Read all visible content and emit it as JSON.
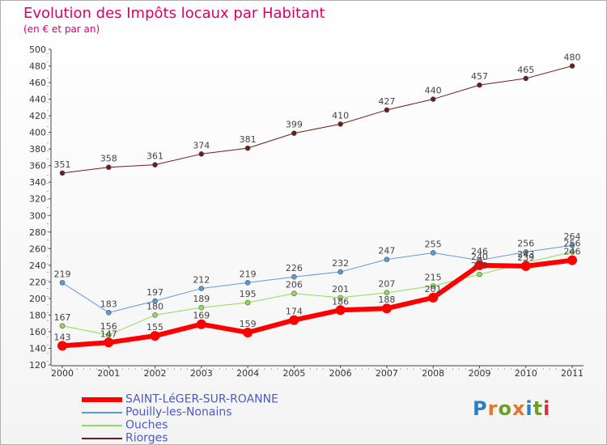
{
  "header": {
    "title": "Evolution des Impôts locaux par Habitant",
    "subtitle": "(en € et par an)"
  },
  "chart_data": {
    "type": "line",
    "title": "Evolution des Impôts locaux par Habitant",
    "ylabel": "(en € et par an)",
    "xlabel": "",
    "ylim": [
      120,
      500
    ],
    "yticks": [
      120,
      140,
      160,
      180,
      200,
      220,
      240,
      260,
      280,
      300,
      320,
      340,
      360,
      380,
      400,
      420,
      440,
      460,
      480,
      500
    ],
    "grid": false,
    "x": [
      "2000",
      "2001",
      "2002",
      "2003",
      "2004",
      "2005",
      "2006",
      "2007",
      "2008",
      "2009",
      "2010",
      "2011"
    ],
    "series": [
      {
        "name": "Riorges",
        "color": "#6b1d1d",
        "width": 1,
        "values": [
          351,
          358,
          361,
          374,
          381,
          399,
          410,
          427,
          440,
          457,
          465,
          480
        ]
      },
      {
        "name": "Pouilly-les-Nonains",
        "color": "#5b9bd5",
        "width": 1,
        "values": [
          219,
          183,
          197,
          212,
          219,
          226,
          232,
          247,
          255,
          246,
          256,
          264
        ]
      },
      {
        "name": "Ouches",
        "color": "#8fdc5a",
        "width": 1,
        "values": [
          167,
          156,
          180,
          189,
          195,
          206,
          201,
          207,
          215,
          229,
          243,
          256
        ]
      },
      {
        "name": "SAINT-LéGER-SUR-ROANNE",
        "color": "#ff0000",
        "width": 6,
        "values": [
          143,
          147,
          155,
          169,
          159,
          174,
          186,
          188,
          201,
          240,
          239,
          246
        ]
      }
    ],
    "legend_position": "bottom-left"
  },
  "legend": {
    "items": [
      {
        "label": "SAINT-LéGER-SUR-ROANNE",
        "color": "#ff0000",
        "thickness": 6
      },
      {
        "label": "Pouilly-les-Nonains",
        "color": "#5b9bd5",
        "thickness": 2
      },
      {
        "label": "Ouches",
        "color": "#8fdc5a",
        "thickness": 2
      },
      {
        "label": "Riorges",
        "color": "#6b1d1d",
        "thickness": 2
      }
    ]
  },
  "logo": {
    "text": "Proxiti"
  }
}
